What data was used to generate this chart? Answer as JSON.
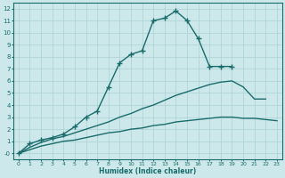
{
  "xlabel": "Humidex (Indice chaleur)",
  "ylabel": "",
  "background_color": "#cce8ea",
  "grid_color": "#b0d4d8",
  "line_color": "#1a6b6b",
  "xlim": [
    -0.5,
    23.5
  ],
  "ylim": [
    -0.5,
    12.5
  ],
  "xticks": [
    0,
    1,
    2,
    3,
    4,
    5,
    6,
    7,
    8,
    9,
    10,
    11,
    12,
    13,
    14,
    15,
    16,
    17,
    18,
    19,
    20,
    21,
    22,
    23
  ],
  "yticks": [
    0,
    1,
    2,
    3,
    4,
    5,
    6,
    7,
    8,
    9,
    10,
    11,
    12
  ],
  "series": [
    {
      "x": [
        0,
        1,
        2,
        3,
        4,
        5,
        6,
        7,
        8,
        9,
        10,
        11,
        12,
        13,
        14,
        15,
        16,
        17,
        18,
        19
      ],
      "y": [
        0,
        0.8,
        1.1,
        1.3,
        1.6,
        2.2,
        3.0,
        3.5,
        5.5,
        7.5,
        8.2,
        8.5,
        11.0,
        11.2,
        11.8,
        11.0,
        9.5,
        7.2,
        7.2,
        7.2
      ],
      "marker": "+",
      "markersize": 4,
      "linewidth": 1.0
    },
    {
      "x": [
        0,
        1,
        2,
        3,
        4,
        5,
        6,
        7,
        8,
        9,
        10,
        11,
        12,
        13,
        14,
        15,
        16,
        17,
        18,
        19,
        20,
        21,
        22
      ],
      "y": [
        0,
        0.5,
        0.9,
        1.2,
        1.4,
        1.7,
        2.0,
        2.3,
        2.6,
        3.0,
        3.3,
        3.7,
        4.0,
        4.4,
        4.8,
        5.1,
        5.4,
        5.7,
        5.9,
        6.0,
        5.5,
        4.5,
        4.5
      ],
      "marker": null,
      "markersize": 0,
      "linewidth": 1.0
    },
    {
      "x": [
        0,
        1,
        2,
        3,
        4,
        5,
        6,
        7,
        8,
        9,
        10,
        11,
        12,
        13,
        14,
        15,
        16,
        17,
        18,
        19,
        20,
        21,
        22,
        23
      ],
      "y": [
        0,
        0.3,
        0.6,
        0.8,
        1.0,
        1.1,
        1.3,
        1.5,
        1.7,
        1.8,
        2.0,
        2.1,
        2.3,
        2.4,
        2.6,
        2.7,
        2.8,
        2.9,
        3.0,
        3.0,
        2.9,
        2.9,
        2.8,
        2.7
      ],
      "marker": null,
      "markersize": 0,
      "linewidth": 1.0
    }
  ]
}
